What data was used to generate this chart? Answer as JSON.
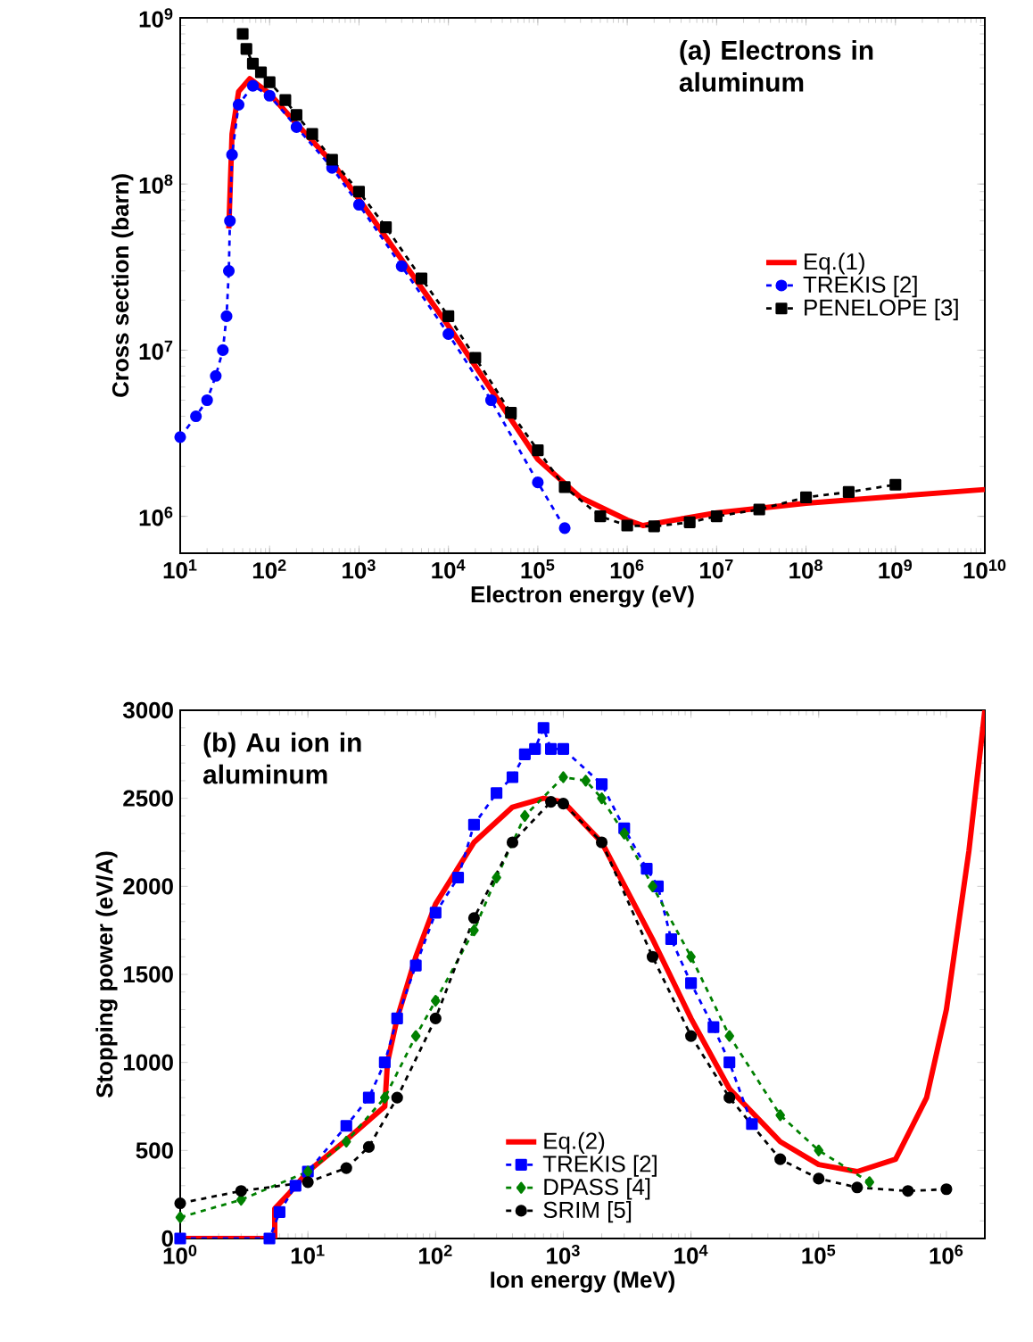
{
  "chart_data": [
    {
      "type": "line",
      "title": "(a) Electrons in aluminum",
      "xlabel": "Electron energy (eV)",
      "ylabel": "Cross section (barn)",
      "log": "xy",
      "legend": "right",
      "grid": false,
      "xlim": [
        10,
        10000000000
      ],
      "ylim": [
        600000,
        1000000000
      ],
      "xticks": [
        {
          "value": 10,
          "label": "10$^{1}$"
        },
        {
          "value": 100,
          "label": "10$^{2}$"
        },
        {
          "value": 1000,
          "label": "10$^{3}$"
        },
        {
          "value": 10000,
          "label": "10$^{4}$"
        },
        {
          "value": 100000,
          "label": "10$^{5}$"
        },
        {
          "value": 1000000,
          "label": "10$^{6}$"
        },
        {
          "value": 10000000,
          "label": "10$^{7}$"
        },
        {
          "value": 100000000,
          "label": "10$^{8}$"
        },
        {
          "value": 1000000000,
          "label": "10$^{9}$"
        },
        {
          "value": 10000000000,
          "label": "10$^{10}$"
        }
      ],
      "yticks": [
        {
          "value": 1000000,
          "label": "10$^{6}$"
        },
        {
          "value": 10000000,
          "label": "10$^{7}$"
        },
        {
          "value": 100000000,
          "label": "10$^{8}$"
        },
        {
          "value": 1000000000,
          "label": "10$^{9}$"
        }
      ],
      "series": [
        {
          "name": "Eq.(1)",
          "color": "#ff0000",
          "marker": "none",
          "line_style": "solid",
          "x": [
            35,
            38,
            45,
            60,
            100,
            200,
            500,
            1000,
            10000,
            100000,
            300000,
            1000000,
            1500000,
            10000000,
            100000000,
            10000000000
          ],
          "values": [
            54000000,
            200000000,
            360000000,
            430000000,
            350000000,
            230000000,
            135000000,
            81000000,
            14000000,
            2200000,
            1300000,
            950000,
            880000,
            1050000,
            1200000,
            1450000
          ]
        },
        {
          "name": "TREKIS [2]",
          "color": "#0000ff",
          "marker": "circle",
          "line_style": "dashed",
          "x": [
            10,
            15,
            20,
            25,
            30,
            33,
            35,
            36,
            38,
            45,
            65,
            100,
            200,
            500,
            1000,
            3000,
            10000,
            30000,
            100000,
            200000
          ],
          "values": [
            3000000,
            4000000,
            5000000,
            7000000,
            10000000,
            16000000,
            30000000,
            60000000,
            150000000,
            300000000,
            390000000,
            340000000,
            220000000,
            125000000,
            75000000,
            32000000,
            12500000,
            5000000,
            1600000,
            850000
          ]
        },
        {
          "name": "PENELOPE [3]",
          "color": "#000000",
          "marker": "square",
          "line_style": "dashed",
          "x": [
            50,
            55,
            65,
            80,
            100,
            150,
            200,
            300,
            500,
            1000,
            2000,
            5000,
            10000,
            20000,
            50000,
            100000,
            200000,
            500000,
            1000000,
            2000000,
            5000000,
            10000000,
            30000000,
            100000000,
            300000000,
            1000000000
          ],
          "values": [
            800000000,
            650000000,
            530000000,
            470000000,
            410000000,
            320000000,
            260000000,
            200000000,
            140000000,
            90000000,
            55000000,
            27000000,
            16000000,
            9000000,
            4200000,
            2500000,
            1500000,
            1000000,
            880000,
            870000,
            920000,
            1000000,
            1100000,
            1300000,
            1400000,
            1550000
          ]
        }
      ]
    },
    {
      "type": "line",
      "title": "(b) Au ion in aluminum",
      "xlabel": "Ion energy (MeV)",
      "ylabel": "Stopping power (eV/A)",
      "log": "x",
      "legend": "bottom",
      "grid": false,
      "xlim": [
        1,
        2000000
      ],
      "ylim": [
        0,
        3000
      ],
      "xticks": [
        {
          "value": 1,
          "label": "10$^{0}$"
        },
        {
          "value": 10,
          "label": "10$^{1}$"
        },
        {
          "value": 100,
          "label": "10$^{2}$"
        },
        {
          "value": 1000,
          "label": "10$^{3}$"
        },
        {
          "value": 10000,
          "label": "10$^{4}$"
        },
        {
          "value": 100000,
          "label": "10$^{5}$"
        },
        {
          "value": 1000000,
          "label": "10$^{6}$"
        }
      ],
      "yticks": [
        0,
        500,
        1000,
        1500,
        2000,
        2500,
        3000
      ],
      "series": [
        {
          "name": "Eq.(2)",
          "color": "#ff0000",
          "marker": "none",
          "line_style": "solid",
          "x": [
            1,
            5.5,
            5.5,
            7,
            10,
            20,
            40,
            42,
            50,
            70,
            100,
            200,
            400,
            700,
            1000,
            2000,
            5000,
            10000,
            20000,
            50000,
            100000,
            200000,
            400000,
            700000,
            1000000,
            1500000,
            2000000
          ],
          "values": [
            0,
            0,
            170,
            250,
            380,
            560,
            750,
            1000,
            1250,
            1600,
            1900,
            2250,
            2450,
            2500,
            2480,
            2250,
            1700,
            1250,
            850,
            550,
            420,
            380,
            450,
            800,
            1300,
            2200,
            3000
          ]
        },
        {
          "name": "TREKIS [2]",
          "color": "#0000ff",
          "marker": "square",
          "line_style": "dashed",
          "x": [
            1,
            5,
            6,
            8,
            10,
            20,
            30,
            40,
            50,
            70,
            100,
            150,
            200,
            300,
            400,
            500,
            600,
            700,
            800,
            1000,
            2000,
            3000,
            4500,
            5500,
            7000,
            10000,
            15000,
            20000,
            30000
          ],
          "values": [
            0,
            0,
            150,
            300,
            380,
            640,
            800,
            1000,
            1250,
            1550,
            1850,
            2050,
            2350,
            2530,
            2620,
            2750,
            2780,
            2900,
            2780,
            2780,
            2580,
            2330,
            2100,
            2000,
            1700,
            1450,
            1200,
            1000,
            650
          ]
        },
        {
          "name": "DPASS [4]",
          "color": "#008000",
          "marker": "diamond",
          "line_style": "dashed",
          "x": [
            1,
            3,
            10,
            20,
            40,
            70,
            100,
            200,
            300,
            500,
            1000,
            1500,
            2000,
            3000,
            5000,
            10000,
            20000,
            50000,
            100000,
            250000
          ],
          "values": [
            120,
            220,
            380,
            550,
            800,
            1150,
            1350,
            1750,
            2050,
            2400,
            2620,
            2600,
            2500,
            2300,
            2000,
            1600,
            1150,
            700,
            500,
            320
          ]
        },
        {
          "name": "SRIM [5]",
          "color": "#000000",
          "marker": "circle",
          "line_style": "dashed",
          "x": [
            1,
            3,
            10,
            20,
            30,
            50,
            100,
            200,
            400,
            800,
            1000,
            2000,
            5000,
            10000,
            20000,
            50000,
            100000,
            200000,
            500000,
            1000000
          ],
          "values": [
            200,
            270,
            320,
            400,
            520,
            800,
            1250,
            1820,
            2250,
            2480,
            2470,
            2250,
            1600,
            1150,
            800,
            450,
            340,
            290,
            270,
            280
          ]
        }
      ]
    }
  ]
}
